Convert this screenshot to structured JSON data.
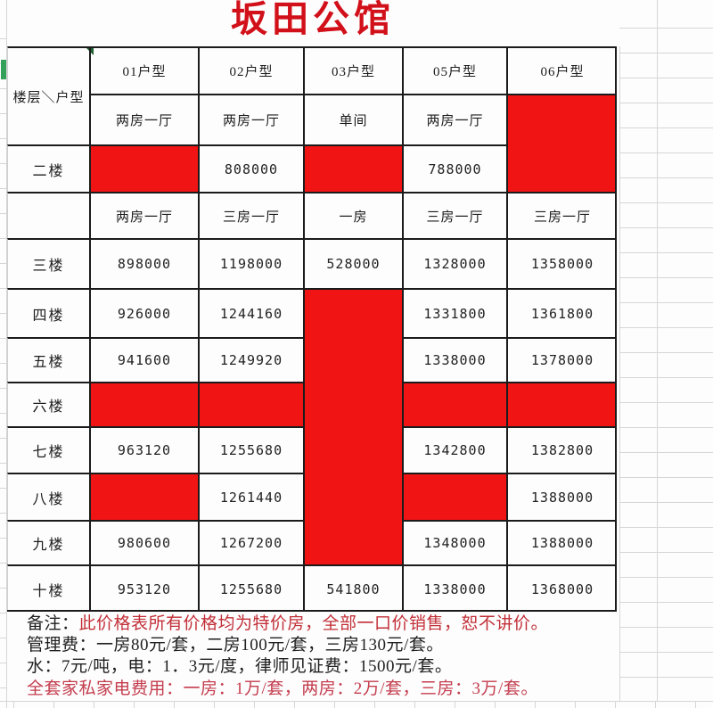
{
  "title": "坂田公馆",
  "colors": {
    "sold_cell_red": "#f11414",
    "title_red": "#d2101a",
    "note_red": "#c22f38",
    "note_red_bottom": "#c43d4e",
    "table_border": "#1b1b1b",
    "sheet_grid": "#d6d6d6",
    "excel_green": "#35a05a"
  },
  "table": {
    "corner_label": "楼层＼户型",
    "col_types": [
      "01户型",
      "02户型",
      "03户型",
      "05户型",
      "06户型"
    ],
    "subtype_row": [
      "两房一厅",
      "两房一厅",
      "单间",
      "两房一厅",
      {
        "red": true
      }
    ],
    "rows": [
      {
        "label": "二楼",
        "cells": [
          {
            "red": true
          },
          "808000",
          {
            "red": true
          },
          "788000",
          {
            "red": true,
            "up": true
          }
        ]
      },
      {
        "label": "",
        "cells": [
          "两房一厅",
          "三房一厅",
          "一房",
          "三房一厅",
          "三房一厅"
        ]
      },
      {
        "label": "三楼",
        "cells": [
          "898000",
          "1198000",
          "528000",
          "1328000",
          "1358000"
        ]
      },
      {
        "label": "四楼",
        "cells": [
          "926000",
          "1244160",
          {
            "red": true
          },
          "1331800",
          "1361800"
        ]
      },
      {
        "label": "五楼",
        "cells": [
          "941600",
          "1249920",
          {
            "red": true,
            "up": true
          },
          "1338000",
          "1378000"
        ]
      },
      {
        "label": "六楼",
        "cells": [
          {
            "red": true
          },
          {
            "red": true
          },
          {
            "red": true,
            "up": true
          },
          {
            "red": true
          },
          {
            "red": true
          }
        ]
      },
      {
        "label": "七楼",
        "cells": [
          "963120",
          "1255680",
          {
            "red": true,
            "up": true
          },
          "1342800",
          "1382800"
        ]
      },
      {
        "label": "八楼",
        "cells": [
          {
            "red": true
          },
          "1261440",
          {
            "red": true,
            "up": true
          },
          {
            "red": true
          },
          "1388000"
        ]
      },
      {
        "label": "九楼",
        "cells": [
          "980600",
          "1267200",
          {
            "red": true,
            "up": true
          },
          "1348000",
          "1388000"
        ]
      },
      {
        "label": "十楼",
        "cells": [
          "953120",
          "1255680",
          "541800",
          "1338000",
          "1368000"
        ]
      }
    ]
  },
  "notes": {
    "line1_prefix": "备注：",
    "line1_red": "此价格表所有价格均为特价房，全部一口价销售，恕不讲价。",
    "line2": "管理费：一房80元/套，二房100元/套，三房130元/套。",
    "line3": "水：7元/吨，电：1．3元/度，律师见证费：1500元/套。",
    "line4": "全套家私家电费用：一房：1万/套，两房：2万/套，三房：3万/套。"
  }
}
